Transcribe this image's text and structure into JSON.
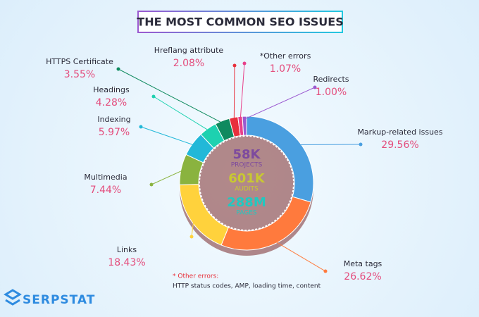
{
  "chart_data": {
    "type": "donut",
    "title": "THE MOST COMMON SEO ISSUES",
    "categories": [
      "Markup-related issues",
      "Meta tags",
      "Links",
      "Multimedia",
      "Indexing",
      "Headings",
      "HTTPS Certificate",
      "Hreflang attribute",
      "*Other errors",
      "Redirects"
    ],
    "values": [
      29.56,
      26.62,
      18.43,
      7.44,
      5.97,
      4.28,
      3.55,
      2.08,
      1.07,
      1.0
    ],
    "value_labels": [
      "29.56%",
      "26.62%",
      "18.43%",
      "7.44%",
      "5.97%",
      "4.28%",
      "3.55%",
      "2.08%",
      "1.07%",
      "1.00%"
    ],
    "colors": [
      "#4a9fe0",
      "#ff7a3d",
      "#ffd23c",
      "#8ab33f",
      "#22b8d8",
      "#1dd1b0",
      "#0f8a5f",
      "#e8303c",
      "#e8408a",
      "#9b59d0"
    ],
    "center": [
      {
        "value": "58K",
        "label": "PROJECTS"
      },
      {
        "value": "601K",
        "label": "AUDITS"
      },
      {
        "value": "288M",
        "label": "PAGES"
      }
    ],
    "note_label": "* Other errors:",
    "note_text": "HTTP status codes, AMP, loading time, content",
    "brand": "SERPSTAT"
  }
}
